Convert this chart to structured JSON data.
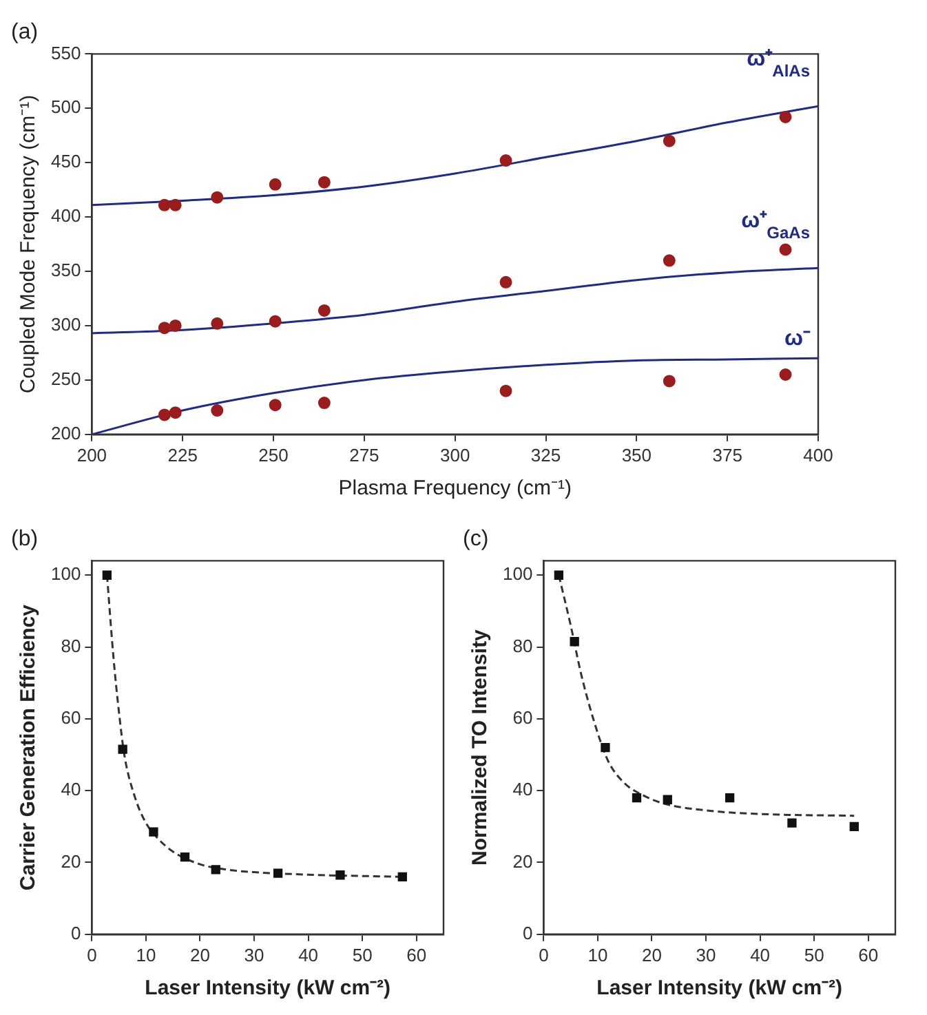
{
  "chart_data": [
    {
      "type": "scatter",
      "title": "(a)",
      "xlabel": "Plasma Frequency (cm⁻¹)",
      "ylabel": "Coupled Mode Frequency (cm⁻¹)",
      "xlim": [
        200,
        400
      ],
      "ylim": [
        200,
        550
      ],
      "xticks": [
        200,
        225,
        250,
        275,
        300,
        325,
        350,
        375,
        400
      ],
      "yticks": [
        200,
        250,
        300,
        350,
        400,
        450,
        500,
        550
      ],
      "grid": false,
      "legend": false,
      "series": [
        {
          "type": "scatter",
          "marker": "circle",
          "color": "#9b1c1c",
          "x": [
            220,
            223,
            234.5,
            250.5,
            264,
            314,
            359,
            391
          ],
          "values": [
            411,
            411,
            418,
            430,
            432,
            452,
            470,
            492
          ]
        },
        {
          "type": "scatter",
          "marker": "circle",
          "color": "#9b1c1c",
          "x": [
            220,
            223,
            234.5,
            250.5,
            264,
            314,
            359,
            391
          ],
          "values": [
            298,
            300,
            302,
            304,
            314,
            340,
            360,
            370
          ]
        },
        {
          "type": "scatter",
          "marker": "circle",
          "color": "#9b1c1c",
          "x": [
            220,
            223,
            234.5,
            250.5,
            264,
            314,
            359,
            391
          ],
          "values": [
            218,
            220,
            222,
            227,
            229,
            240,
            249,
            255
          ]
        },
        {
          "type": "line",
          "name": "ω⁺$_{AlAs}$",
          "marker": "none",
          "line_style": "solid",
          "color": "#1f2a8a",
          "x": [
            200,
            225,
            250,
            275,
            300,
            325,
            350,
            375,
            400
          ],
          "values": [
            411,
            415,
            420,
            428,
            440,
            455,
            470,
            487,
            502
          ]
        },
        {
          "type": "line",
          "name": "ω⁺$_{GaAs}$",
          "marker": "none",
          "line_style": "solid",
          "color": "#1f2a8a",
          "x": [
            200,
            225,
            250,
            275,
            300,
            325,
            350,
            375,
            400
          ],
          "values": [
            293,
            296,
            302,
            310,
            322,
            332,
            342,
            349,
            353
          ]
        },
        {
          "type": "line",
          "name": "ω⁻",
          "marker": "none",
          "line_style": "solid",
          "color": "#1f2a8a",
          "x": [
            200,
            225,
            250,
            275,
            300,
            325,
            350,
            375,
            400
          ],
          "values": [
            200,
            222,
            238,
            250,
            258,
            264,
            268,
            269,
            270
          ]
        }
      ]
    },
    {
      "type": "scatter",
      "title": "(b)",
      "xlabel": "Laser Intensity (kW cm⁻²)",
      "ylabel": "Carrier Generation Efficiency",
      "xlim": [
        0,
        65
      ],
      "ylim": [
        0,
        104
      ],
      "xticks": [
        0,
        10,
        20,
        30,
        40,
        50,
        60
      ],
      "yticks": [
        0,
        20,
        40,
        60,
        80,
        100
      ],
      "grid": false,
      "legend": false,
      "series": [
        {
          "type": "scatter",
          "marker": "square",
          "color": "#111111",
          "x": [
            2.8,
            5.7,
            11.4,
            17.2,
            22.9,
            34.4,
            45.9,
            57.4
          ],
          "values": [
            100,
            51.5,
            28.5,
            21.5,
            18,
            17,
            16.5,
            16
          ]
        },
        {
          "type": "line",
          "marker": "none",
          "line_style": "dashed",
          "color": "#333333",
          "x": [
            2.8,
            4,
            5,
            6,
            8,
            10,
            12,
            15,
            20,
            25,
            30,
            40,
            57.4
          ],
          "values": [
            100,
            77,
            62,
            50,
            38,
            31,
            27,
            23,
            19.5,
            18,
            17.3,
            16.6,
            16
          ]
        }
      ]
    },
    {
      "type": "scatter",
      "title": "(c)",
      "xlabel": "Laser Intensity (kW cm⁻²)",
      "ylabel": "Normalized TO Intensity",
      "xlim": [
        0,
        65
      ],
      "ylim": [
        0,
        104
      ],
      "xticks": [
        0,
        10,
        20,
        30,
        40,
        50,
        60
      ],
      "yticks": [
        0,
        20,
        40,
        60,
        80,
        100
      ],
      "grid": false,
      "legend": false,
      "series": [
        {
          "type": "scatter",
          "marker": "square",
          "color": "#111111",
          "x": [
            2.8,
            5.7,
            11.4,
            17.2,
            22.9,
            34.4,
            45.9,
            57.4
          ],
          "values": [
            100,
            81.5,
            52,
            38,
            37.5,
            38,
            31,
            30
          ]
        },
        {
          "type": "line",
          "marker": "none",
          "line_style": "dashed",
          "color": "#333333",
          "x": [
            2.8,
            5,
            7,
            10,
            12,
            15,
            18,
            22,
            30,
            40,
            57.4
          ],
          "values": [
            100,
            86,
            72,
            56,
            48,
            42,
            39,
            36.5,
            34.5,
            33.5,
            33
          ]
        }
      ]
    }
  ]
}
